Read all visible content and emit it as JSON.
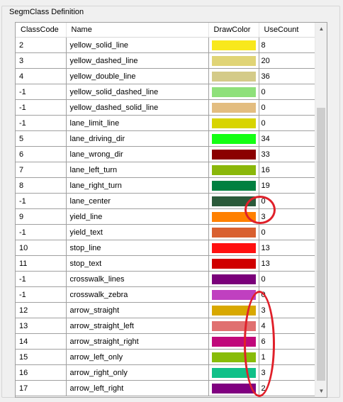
{
  "group": {
    "title": "SegmClass Definition"
  },
  "table": {
    "headers": [
      "ClassCode",
      "Name",
      "DrawColor",
      "UseCount"
    ],
    "rows": [
      {
        "code": "2",
        "name": "yellow_solid_line",
        "color": "#f8e81c",
        "count": "8"
      },
      {
        "code": "3",
        "name": "yellow_dashed_line",
        "color": "#e0d476",
        "count": "20"
      },
      {
        "code": "4",
        "name": "yellow_double_line",
        "color": "#d4cb89",
        "count": "36"
      },
      {
        "code": "-1",
        "name": "yellow_solid_dashed_line",
        "color": "#8ee07a",
        "count": "0"
      },
      {
        "code": "-1",
        "name": "yellow_dashed_solid_line",
        "color": "#e3bd80",
        "count": "0"
      },
      {
        "code": "-1",
        "name": "lane_limit_line",
        "color": "#d8d400",
        "count": "0"
      },
      {
        "code": "5",
        "name": "lane_driving_dir",
        "color": "#14ff14",
        "count": "34"
      },
      {
        "code": "6",
        "name": "lane_wrong_dir",
        "color": "#8b0000",
        "count": "33"
      },
      {
        "code": "7",
        "name": "lane_left_turn",
        "color": "#8ab70a",
        "count": "16"
      },
      {
        "code": "8",
        "name": "lane_right_turn",
        "color": "#008040",
        "count": "19"
      },
      {
        "code": "-1",
        "name": "lane_center",
        "color": "#2a5a3a",
        "count": "0"
      },
      {
        "code": "9",
        "name": "yield_line",
        "color": "#ff8000",
        "count": "3"
      },
      {
        "code": "-1",
        "name": "yield_text",
        "color": "#d96030",
        "count": "0"
      },
      {
        "code": "10",
        "name": "stop_line",
        "color": "#ff1010",
        "count": "13"
      },
      {
        "code": "11",
        "name": "stop_text",
        "color": "#d00000",
        "count": "13"
      },
      {
        "code": "-1",
        "name": "crosswalk_lines",
        "color": "#7a007a",
        "count": "0"
      },
      {
        "code": "-1",
        "name": "crosswalk_zebra",
        "color": "#c040c0",
        "count": "0"
      },
      {
        "code": "12",
        "name": "arrow_straight",
        "color": "#d8a800",
        "count": "3"
      },
      {
        "code": "13",
        "name": "arrow_straight_left",
        "color": "#e07070",
        "count": "4"
      },
      {
        "code": "14",
        "name": "arrow_straight_right",
        "color": "#c0087a",
        "count": "6"
      },
      {
        "code": "15",
        "name": "arrow_left_only",
        "color": "#88bc08",
        "count": "1"
      },
      {
        "code": "16",
        "name": "arrow_right_only",
        "color": "#10c088",
        "count": "3"
      },
      {
        "code": "17",
        "name": "arrow_left_right",
        "color": "#800080",
        "count": "2"
      }
    ]
  },
  "scrollbar": {
    "up_icon": "▲",
    "down_icon": "▼"
  },
  "annotation_color": "#e0202a"
}
